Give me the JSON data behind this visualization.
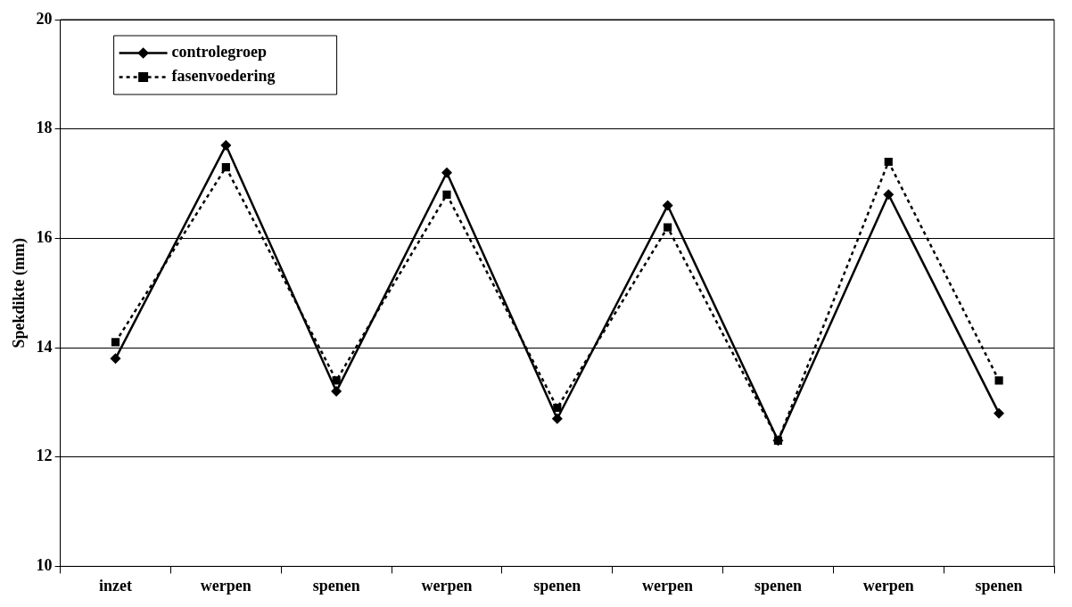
{
  "chart_data": {
    "type": "line",
    "ylabel": "Spekdikte (mm)",
    "categories": [
      "inzet",
      "werpen",
      "spenen",
      "werpen",
      "spenen",
      "werpen",
      "spenen",
      "werpen",
      "spenen"
    ],
    "series": [
      {
        "name": "controlegroep",
        "color": "#000000",
        "marker": "diamond",
        "line_style": "solid",
        "values": [
          13.8,
          17.7,
          13.2,
          17.2,
          12.7,
          16.6,
          12.3,
          16.8,
          12.8
        ]
      },
      {
        "name": "fasenvoedering",
        "color": "#000000",
        "marker": "square",
        "line_style": "dotted",
        "values": [
          14.1,
          17.3,
          13.4,
          16.8,
          12.9,
          16.2,
          12.3,
          17.4,
          13.4
        ]
      }
    ],
    "ylim": [
      10,
      20
    ],
    "yticks": [
      10,
      12,
      14,
      16,
      18,
      20
    ],
    "grid": "y",
    "legend": "top left"
  }
}
